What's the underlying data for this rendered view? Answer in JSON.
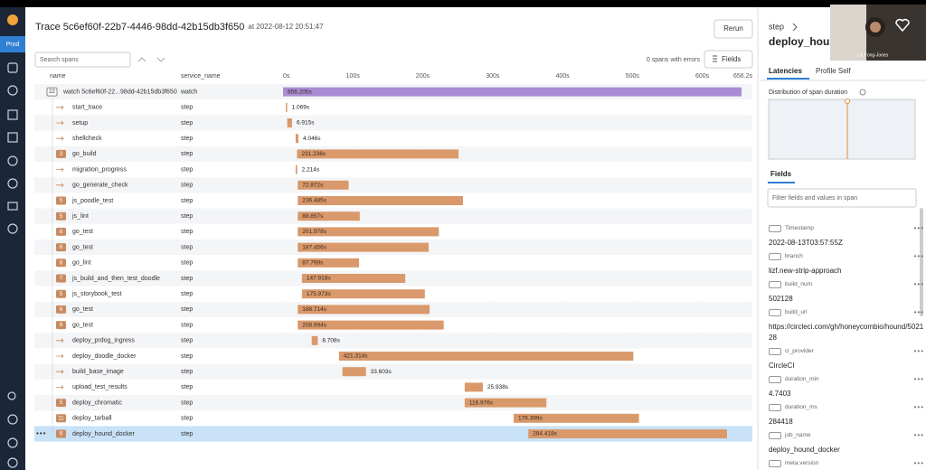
{
  "sidebar": {
    "env": "Prod"
  },
  "header": {
    "title": "Trace 5c6ef60f-22b7-4446-98dd-42b15db3f650",
    "timestamp": "at 2022-08-12 20:51:47",
    "rerun": "Rerun"
  },
  "toolbar": {
    "search_placeholder": "Search spans",
    "errors": "0 spans with errors",
    "fields_button": "Fields"
  },
  "columns": {
    "name": "name",
    "service": "service_name"
  },
  "service_colors": {
    "watch": "#a98bd4",
    "step": "#d9996b"
  },
  "timeline": {
    "xlim": [
      0,
      656.2
    ],
    "ticks": [
      {
        "value": 0,
        "label": "0s"
      },
      {
        "value": 100,
        "label": "100s"
      },
      {
        "value": 200,
        "label": "200s"
      },
      {
        "value": 300,
        "label": "300s"
      },
      {
        "value": 400,
        "label": "400s"
      },
      {
        "value": 500,
        "label": "500s"
      },
      {
        "value": 600,
        "label": "600s"
      },
      {
        "value": 656.2,
        "label": "656.2s"
      }
    ]
  },
  "spans": [
    {
      "name": "watch 5c6ef60f-22...98dd-42b15db3f650",
      "service": "watch",
      "children": 22,
      "start": 0,
      "duration": 656.205,
      "duration_label": "656.205s"
    },
    {
      "name": "start_trace",
      "service": "step",
      "start": 4,
      "duration": 1.069,
      "duration_label": "1.069s"
    },
    {
      "name": "setup",
      "service": "step",
      "start": 6,
      "duration": 6.915,
      "duration_label": "6.915s"
    },
    {
      "name": "shellcheck",
      "service": "step",
      "start": 18,
      "duration": 4.046,
      "duration_label": "4.046s"
    },
    {
      "name": "go_build",
      "service": "step",
      "children": 3,
      "start": 20,
      "duration": 231.236,
      "duration_label": "231.236s"
    },
    {
      "name": "migration_progress",
      "service": "step",
      "start": 18,
      "duration": 2.214,
      "duration_label": "2.214s"
    },
    {
      "name": "go_generate_check",
      "service": "step",
      "start": 21,
      "duration": 72.872,
      "duration_label": "72.872s"
    },
    {
      "name": "js_poodle_test",
      "service": "step",
      "children": 5,
      "start": 21,
      "duration": 236.485,
      "duration_label": "236.485s"
    },
    {
      "name": "js_lint",
      "service": "step",
      "children": 5,
      "start": 21,
      "duration": 88.857,
      "duration_label": "88.857s"
    },
    {
      "name": "go_test",
      "service": "step",
      "children": 6,
      "start": 21,
      "duration": 201.978,
      "duration_label": "201.978s"
    },
    {
      "name": "go_test",
      "service": "step",
      "children": 6,
      "start": 21,
      "duration": 187.456,
      "duration_label": "187.456s"
    },
    {
      "name": "go_lint",
      "service": "step",
      "children": 6,
      "start": 21,
      "duration": 87.799,
      "duration_label": "87.799s"
    },
    {
      "name": "js_build_and_then_test_doodle",
      "service": "step",
      "children": 7,
      "start": 27,
      "duration": 147.918,
      "duration_label": "147.918s"
    },
    {
      "name": "js_storybook_test",
      "service": "step",
      "children": 5,
      "start": 27,
      "duration": 175.973,
      "duration_label": "175.973s"
    },
    {
      "name": "go_test",
      "service": "step",
      "children": 6,
      "start": 21,
      "duration": 188.714,
      "duration_label": "188.714s"
    },
    {
      "name": "go_test",
      "service": "step",
      "children": 6,
      "start": 21,
      "duration": 208.994,
      "duration_label": "208.994s"
    },
    {
      "name": "deploy_prdog_ingress",
      "service": "step",
      "start": 41,
      "duration": 8.708,
      "duration_label": "8.708s"
    },
    {
      "name": "deploy_doodle_docker",
      "service": "step",
      "start": 80,
      "duration": 421.314,
      "duration_label": "421.314s"
    },
    {
      "name": "build_base_image",
      "service": "step",
      "start": 85,
      "duration": 33.603,
      "duration_label": "33.603s"
    },
    {
      "name": "upload_test_results",
      "service": "step",
      "start": 260,
      "duration": 25.938,
      "duration_label": "25.938s"
    },
    {
      "name": "deploy_chromatic",
      "service": "step",
      "children": 5,
      "start": 260,
      "duration": 116.976,
      "duration_label": "116.976s"
    },
    {
      "name": "deploy_tarball",
      "service": "step",
      "children": 11,
      "start": 330,
      "duration": 179.399,
      "duration_label": "179.399s"
    },
    {
      "name": "deploy_hound_docker",
      "service": "step",
      "children": 6,
      "start": 351,
      "duration": 284.418,
      "duration_label": "284.418s",
      "selected": true
    }
  ],
  "detail": {
    "service": "step",
    "span_name": "deploy_houn",
    "tabs": [
      "Latencies",
      "Profile Self"
    ],
    "distribution_title": "Distribution of span duration",
    "fields_title": "Fields",
    "filter_placeholder": "Filter fields and values in span",
    "fields": [
      {
        "key": "Timestamp",
        "value": "2022-08-13T03:57:55Z"
      },
      {
        "key": "branch",
        "value": "lizf.new-strip-approach"
      },
      {
        "key": "build_num",
        "value": "502128"
      },
      {
        "key": "build_url",
        "value": "https://circleci.com/gh/honeycombio/hound/502128"
      },
      {
        "key": "ci_provider",
        "value": "CircleCI"
      },
      {
        "key": "duration_min",
        "value": "4.7403"
      },
      {
        "key": "duration_ms",
        "value": "284418"
      },
      {
        "key": "job_name",
        "value": "deploy_hound_docker"
      },
      {
        "key": "meta.version"
      }
    ]
  },
  "video": {
    "name": "Liz Fong-Jones"
  }
}
